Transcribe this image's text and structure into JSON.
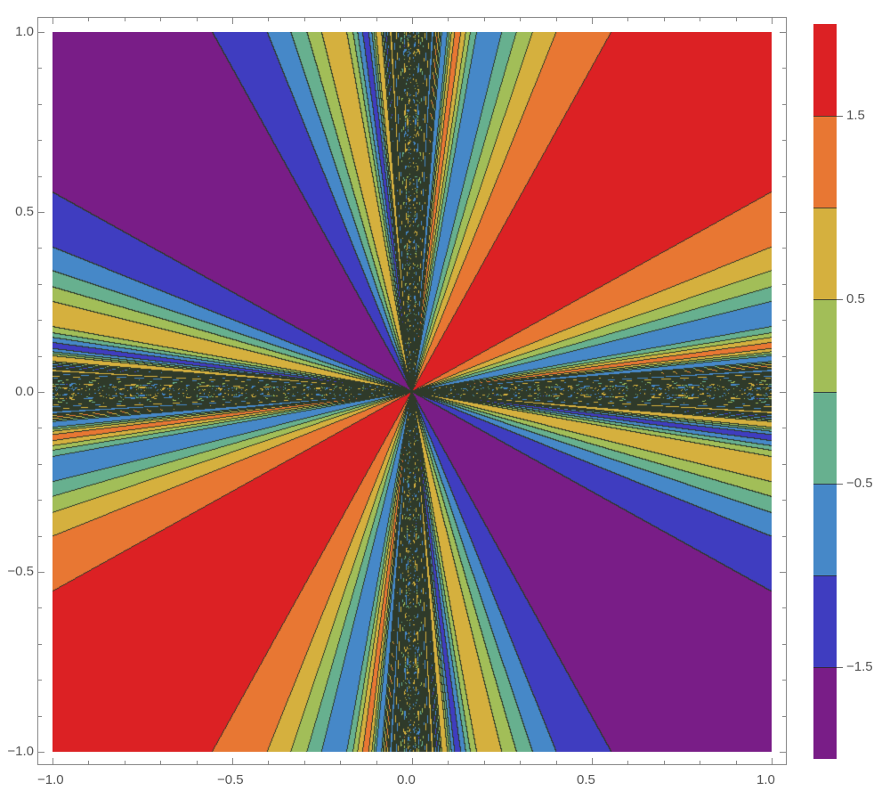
{
  "chart_data": {
    "type": "contour",
    "function_description": "Filled contour plot of f(x,y) = sin(x/y) + sin(y/x)",
    "title": "",
    "xlabel": "",
    "ylabel": "",
    "xlim": [
      -1.0,
      1.0
    ],
    "ylim": [
      -1.0,
      1.0
    ],
    "x_ticks": [
      {
        "value": -1.0,
        "label": "−1.0"
      },
      {
        "value": -0.5,
        "label": "−0.5"
      },
      {
        "value": 0.0,
        "label": "0.0"
      },
      {
        "value": 0.5,
        "label": "0.5"
      },
      {
        "value": 1.0,
        "label": "1.0"
      }
    ],
    "y_ticks": [
      {
        "value": 1.0,
        "label": "1.0"
      },
      {
        "value": 0.5,
        "label": "0.5"
      },
      {
        "value": 0.0,
        "label": "0.0"
      },
      {
        "value": -0.5,
        "label": "−0.5"
      },
      {
        "value": -1.0,
        "label": "−1.0"
      }
    ],
    "minor_tick_step": 0.1,
    "contour_levels": [
      -1.5,
      -1.0,
      -0.5,
      0.0,
      0.5,
      1.0,
      1.5
    ],
    "value_range": [
      -2.0,
      2.0
    ],
    "bands": [
      {
        "range": [
          1.5,
          2.0
        ],
        "color": "#dc2124"
      },
      {
        "range": [
          1.0,
          1.5
        ],
        "color": "#e87733"
      },
      {
        "range": [
          0.5,
          1.0
        ],
        "color": "#d5b03e"
      },
      {
        "range": [
          0.0,
          0.5
        ],
        "color": "#a2be58"
      },
      {
        "range": [
          -0.5,
          0.0
        ],
        "color": "#67b08f"
      },
      {
        "range": [
          -1.0,
          -0.5
        ],
        "color": "#4688c8"
      },
      {
        "range": [
          -1.5,
          -1.0
        ],
        "color": "#3f3dc0"
      },
      {
        "range": [
          -2.0,
          -1.5
        ],
        "color": "#791d87"
      }
    ],
    "contour_line_color": "#2f3a2a",
    "legend": {
      "type": "colorbar",
      "position": "right",
      "tick_labels": [
        {
          "value": 1.5,
          "label": "1.5"
        },
        {
          "value": 0.5,
          "label": "0.5"
        },
        {
          "value": -0.5,
          "label": "−0.5"
        },
        {
          "value": -1.5,
          "label": "−1.5"
        }
      ]
    },
    "grid": false,
    "features": {
      "top_right": "red (>1.5)",
      "top_left": "purple (<-1.5)",
      "bottom_left": "red (>1.5)",
      "bottom_right": "purple (<-1.5)",
      "axes_x0_y0": "dense oscillating contours (black band) along x=0 and y=0"
    }
  }
}
